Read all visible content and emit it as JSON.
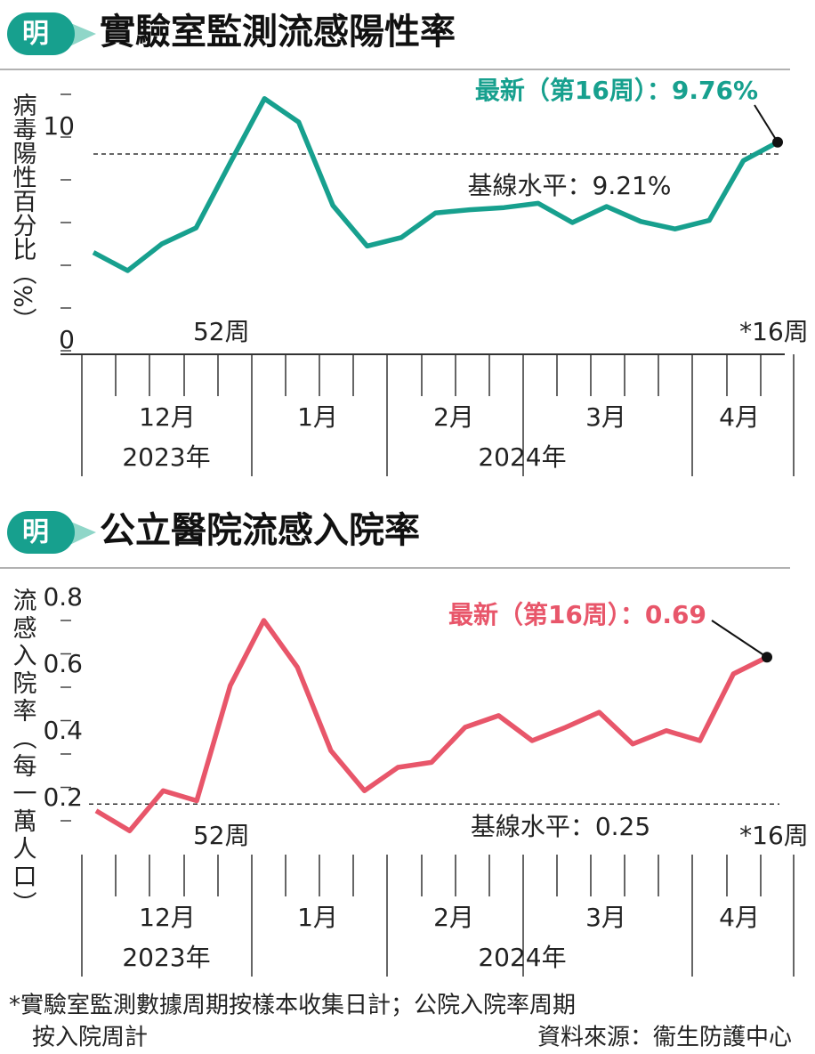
{
  "brand": "明",
  "chart_data": [
    {
      "type": "line",
      "title": "實驗室監測流感陽性率",
      "y_label": "病毒陽性百分比（%）",
      "categories": [
        null,
        null,
        null,
        null,
        "52周",
        null,
        null,
        null,
        null,
        null,
        null,
        null,
        null,
        null,
        null,
        null,
        null,
        null,
        null,
        null,
        "*16周"
      ],
      "series": [
        {
          "color": "#17a08e",
          "values": [
            4.6,
            3.75,
            5.0,
            5.75,
            8.8,
            11.8,
            10.7,
            6.8,
            4.9,
            5.3,
            6.45,
            6.6,
            6.7,
            6.9,
            6.0,
            6.75,
            6.05,
            5.7,
            6.1,
            8.9,
            9.76
          ]
        }
      ],
      "ylim": [
        0,
        12.5
      ],
      "yticks": [
        0,
        10
      ],
      "minor_yticks": [
        2,
        4,
        6,
        8,
        12
      ],
      "baseline": {
        "value": 9.21,
        "label": "基線水平：9.21%"
      },
      "latest_label": "最新（第16周）：9.76%",
      "months": [
        "12月",
        "1月",
        "2月",
        "3月",
        "4月"
      ],
      "years": [
        "2023年",
        "2024年"
      ]
    },
    {
      "type": "line",
      "title": "公立醫院流感入院率",
      "y_label": "流感入院率（每一萬人口）",
      "categories": [
        null,
        null,
        null,
        null,
        "52周",
        null,
        null,
        null,
        null,
        null,
        null,
        null,
        null,
        null,
        null,
        null,
        null,
        null,
        null,
        null,
        "*16周"
      ],
      "series": [
        {
          "color": "#e8566a",
          "values": [
            0.23,
            0.17,
            0.29,
            0.26,
            0.605,
            0.8,
            0.66,
            0.41,
            0.29,
            0.36,
            0.375,
            0.48,
            0.515,
            0.44,
            0.48,
            0.525,
            0.43,
            0.47,
            0.44,
            0.64,
            0.69
          ]
        }
      ],
      "ylim": [
        0.1,
        0.9
      ],
      "yticks": [
        0.2,
        0.4,
        0.6,
        0.8
      ],
      "minor_yticks": [
        0.3,
        0.5,
        0.7
      ],
      "baseline": {
        "value": 0.25,
        "label": "基線水平：0.25"
      },
      "latest_label": "最新（第16周）：0.69",
      "months": [
        "12月",
        "1月",
        "2月",
        "3月",
        "4月"
      ],
      "years": [
        "2023年",
        "2024年"
      ]
    }
  ],
  "footnote": [
    "*實驗室監測數據周期按樣本收集日計；公院入院率周期",
    "按入院周計"
  ],
  "source": "資料來源：衞生防護中心"
}
